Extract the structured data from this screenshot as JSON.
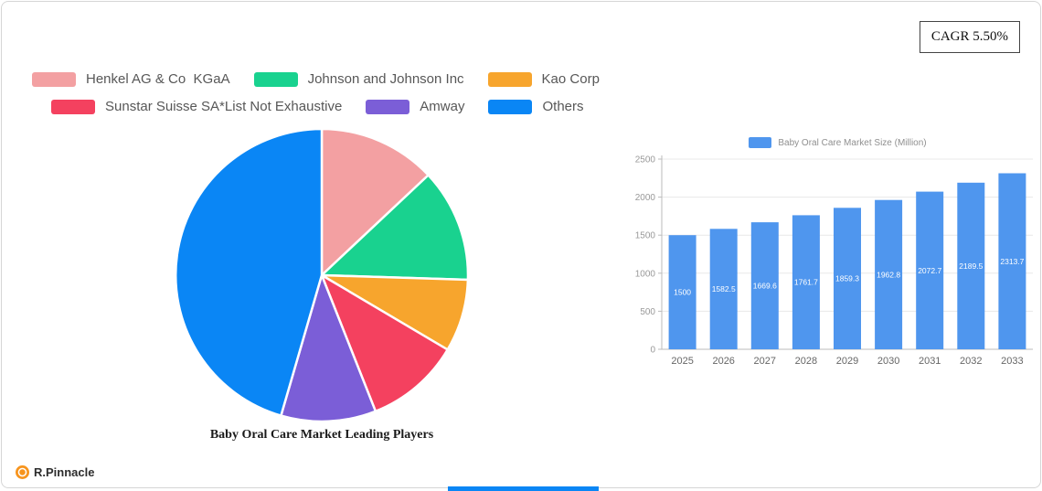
{
  "cagr_badge": "CAGR 5.50%",
  "logo": {
    "text": "R.Pinnacle"
  },
  "chart_data": [
    {
      "type": "pie",
      "title": "Baby Oral Care Market Leading Players",
      "legend_position": "top",
      "note": "slice percentages estimated from pixel angles; no data labels shown",
      "series": [
        {
          "name": "Henkel AG & Co  KGaA",
          "value": 13,
          "color": "#f3a0a2"
        },
        {
          "name": "Johnson and Johnson Inc",
          "value": 12.5,
          "color": "#19d28f"
        },
        {
          "name": "Kao Corp",
          "value": 8,
          "color": "#f7a52d"
        },
        {
          "name": "Sunstar Suisse SA*List Not Exhaustive",
          "value": 10.5,
          "color": "#f4415f"
        },
        {
          "name": "Amway",
          "value": 10.5,
          "color": "#7b5ed7"
        },
        {
          "name": "Others",
          "value": 45.5,
          "color": "#0a86f5"
        }
      ]
    },
    {
      "type": "bar",
      "legend": "Baby Oral Care Market Size (Million)",
      "categories": [
        "2025",
        "2026",
        "2027",
        "2028",
        "2029",
        "2030",
        "2031",
        "2032",
        "2033"
      ],
      "values": [
        1500,
        1582.5,
        1669.6,
        1761.7,
        1859.3,
        1962.8,
        2072.7,
        2189.5,
        2313.7
      ],
      "labels": [
        "1500",
        "1582.5",
        "1669.6",
        "1761.7",
        "1859.3",
        "1962.8",
        "2072.7",
        "2189.5",
        "2313.7"
      ],
      "bar_color": "#4f96ee",
      "xlabel": "",
      "ylabel": "",
      "ylim": [
        0,
        2500
      ],
      "yticks": [
        0,
        500,
        1000,
        1500,
        2000,
        2500
      ],
      "grid": true,
      "legend_position": "top"
    }
  ]
}
